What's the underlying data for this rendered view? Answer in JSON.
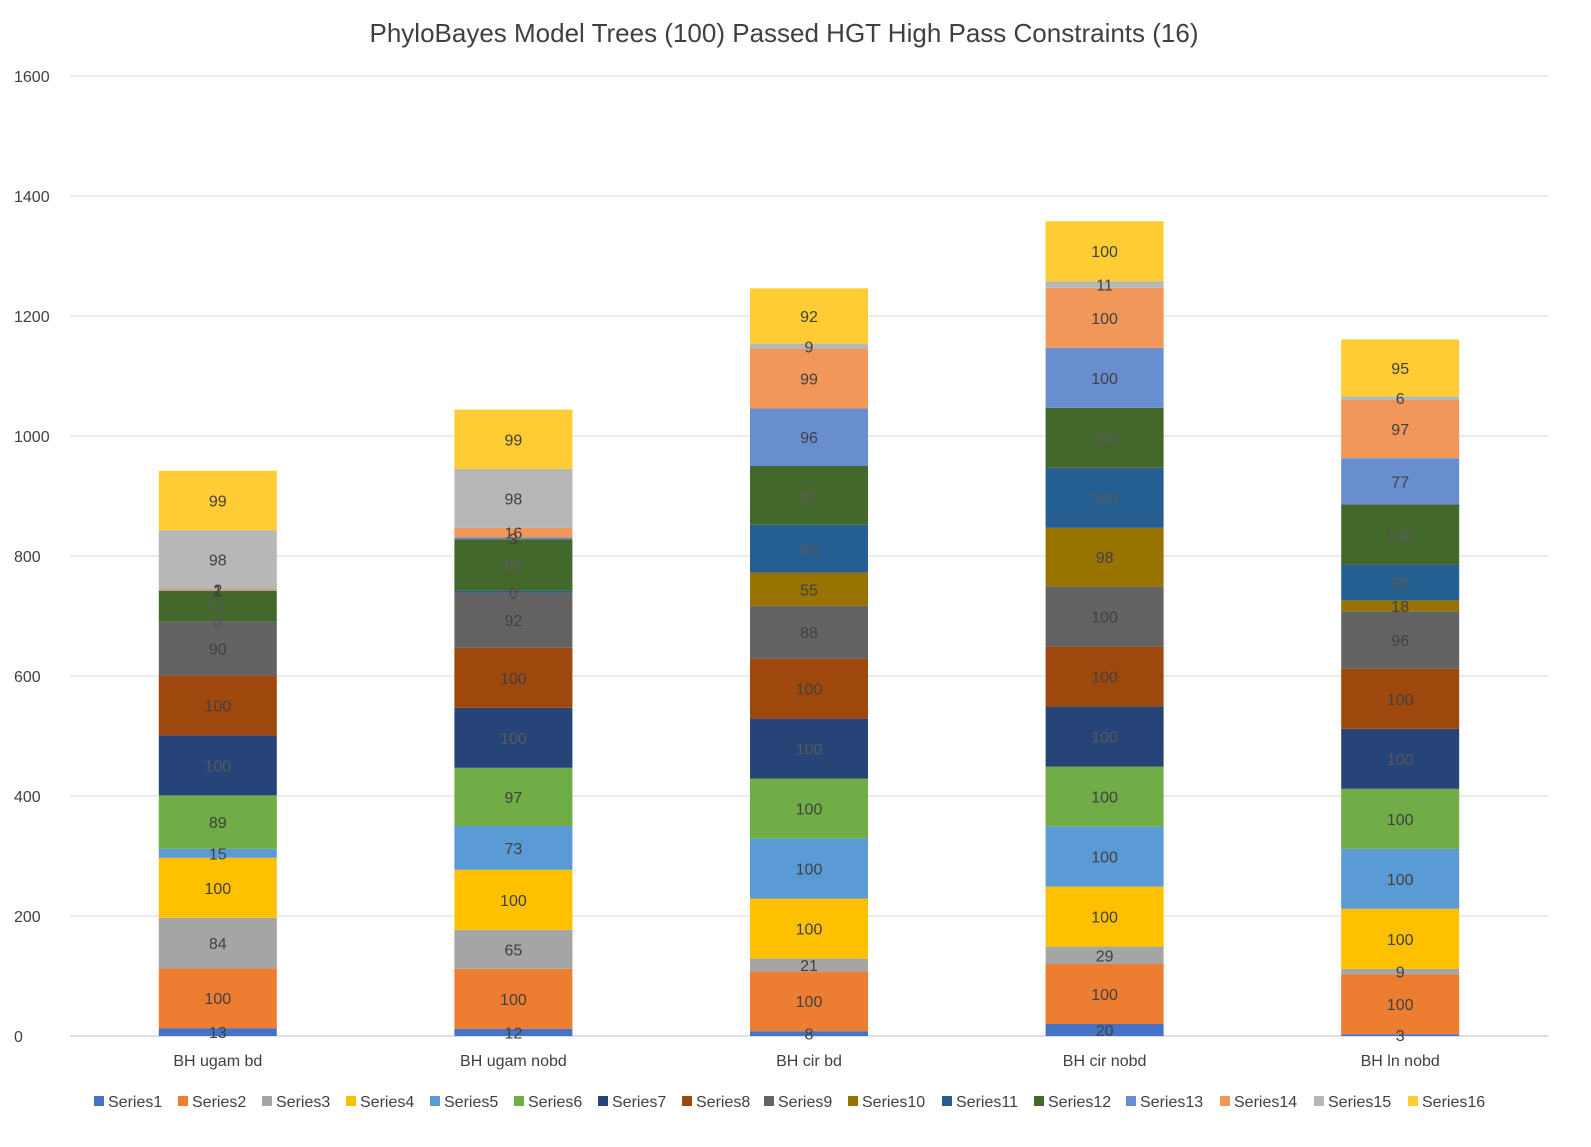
{
  "chart_data": {
    "type": "bar",
    "stacked": true,
    "title": "PhyloBayes Model Trees (100) Passed HGT High Pass Constraints (16)",
    "xlabel": "",
    "ylabel": "",
    "ylim": [
      0,
      1600
    ],
    "yticks": [
      0,
      200,
      400,
      600,
      800,
      1000,
      1200,
      1400,
      1600
    ],
    "grid": true,
    "legend_position": "bottom",
    "categories": [
      "BH ugam bd",
      "BH ugam nobd",
      "BH cir bd",
      "BH cir nobd",
      "BH ln nobd"
    ],
    "series": [
      {
        "name": "Series1",
        "color": "#4472C4",
        "values": [
          13,
          12,
          8,
          20,
          3
        ]
      },
      {
        "name": "Series2",
        "color": "#ED7D31",
        "values": [
          100,
          100,
          100,
          100,
          100
        ]
      },
      {
        "name": "Series3",
        "color": "#A5A5A5",
        "values": [
          84,
          65,
          21,
          29,
          9
        ]
      },
      {
        "name": "Series4",
        "color": "#FFC000",
        "values": [
          100,
          100,
          100,
          100,
          100
        ]
      },
      {
        "name": "Series5",
        "color": "#5B9BD5",
        "values": [
          15,
          73,
          100,
          100,
          100
        ]
      },
      {
        "name": "Series6",
        "color": "#70AD47",
        "values": [
          89,
          97,
          100,
          100,
          100
        ]
      },
      {
        "name": "Series7",
        "color": "#264478",
        "values": [
          100,
          100,
          100,
          100,
          100
        ]
      },
      {
        "name": "Series8",
        "color": "#9E480E",
        "values": [
          100,
          100,
          100,
          100,
          100
        ]
      },
      {
        "name": "Series9",
        "color": "#636363",
        "values": [
          90,
          92,
          88,
          100,
          96
        ]
      },
      {
        "name": "Series10",
        "color": "#997300",
        "values": [
          0,
          0,
          55,
          98,
          18
        ]
      },
      {
        "name": "Series11",
        "color": "#255E91",
        "values": [
          0,
          3,
          80,
          100,
          60
        ]
      },
      {
        "name": "Series12",
        "color": "#43682B",
        "values": [
          51,
          86,
          98,
          100,
          100
        ]
      },
      {
        "name": "Series13",
        "color": "#698ED0",
        "values": [
          1,
          3,
          96,
          100,
          77
        ]
      },
      {
        "name": "Series14",
        "color": "#F1975A",
        "values": [
          2,
          16,
          99,
          100,
          97
        ]
      },
      {
        "name": "Series15",
        "color": "#B7B7B7",
        "values": [
          98,
          98,
          9,
          11,
          6
        ]
      },
      {
        "name": "Series16",
        "color": "#FFCD33",
        "values": [
          99,
          99,
          92,
          100,
          95
        ]
      }
    ]
  }
}
